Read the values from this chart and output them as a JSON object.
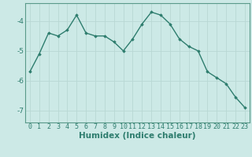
{
  "x": [
    0,
    1,
    2,
    3,
    4,
    5,
    6,
    7,
    8,
    9,
    10,
    11,
    12,
    13,
    14,
    15,
    16,
    17,
    18,
    19,
    20,
    21,
    22,
    23
  ],
  "y": [
    -5.7,
    -5.1,
    -4.4,
    -4.5,
    -4.3,
    -3.8,
    -4.4,
    -4.5,
    -4.5,
    -4.7,
    -5.0,
    -4.6,
    -4.1,
    -3.7,
    -3.8,
    -4.1,
    -4.6,
    -4.85,
    -5.0,
    -5.7,
    -5.9,
    -6.1,
    -6.55,
    -6.9
  ],
  "line_color": "#2e7d6e",
  "marker": "D",
  "marker_size": 1.8,
  "bg_color": "#cce9e6",
  "grid_color": "#b8d8d4",
  "axis_color": "#2e7d6e",
  "spine_color": "#5a9a8a",
  "xlabel": "Humidex (Indice chaleur)",
  "ylim": [
    -7.4,
    -3.4
  ],
  "yticks": [
    -7,
    -6,
    -5,
    -4
  ],
  "xlim": [
    -0.5,
    23.5
  ],
  "xlabel_fontsize": 7.5,
  "tick_fontsize": 6,
  "line_width": 1.0
}
